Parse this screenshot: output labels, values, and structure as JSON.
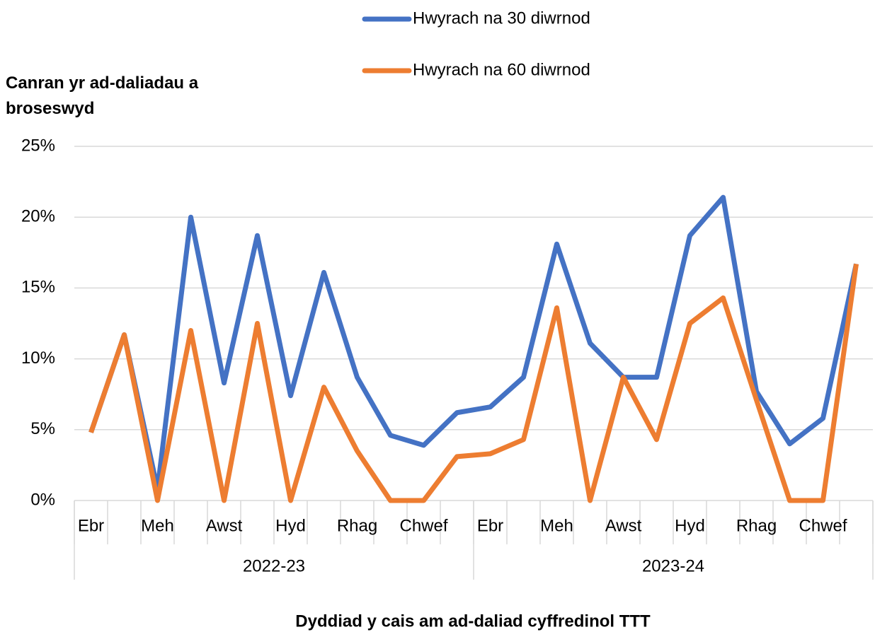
{
  "chart_data": {
    "type": "line",
    "y_axis_label": "Canran yr ad-daliadau a broseswyd",
    "x_axis_label": "Dyddiad y cais am ad-daliad cyffredinol TTT",
    "categories": [
      "Ebr",
      null,
      "Meh",
      null,
      "Awst",
      null,
      "Hyd",
      null,
      "Rhag",
      null,
      "Chwef",
      null,
      "Ebr",
      null,
      "Meh",
      null,
      "Awst",
      null,
      "Hyd",
      null,
      "Rhag",
      null,
      "Chwef",
      null
    ],
    "groups": [
      "2022-23",
      "2023-24"
    ],
    "series": [
      {
        "name": "Hwyrach na 30 diwrnod",
        "color": "#4472c4",
        "values": [
          4.8,
          11.7,
          0.8,
          20,
          8.3,
          18.7,
          7.4,
          16.1,
          8.7,
          4.6,
          3.9,
          6.2,
          6.6,
          8.7,
          18.1,
          11.1,
          8.7,
          8.7,
          18.7,
          21.4,
          7.7,
          4.0,
          5.8,
          16.7
        ]
      },
      {
        "name": "Hwyrach na 60 diwrnod",
        "color": "#ed7d31",
        "values": [
          4.8,
          11.7,
          0,
          12,
          0,
          12.5,
          0,
          8,
          3.5,
          0,
          0,
          3.1,
          3.3,
          4.3,
          13.6,
          0,
          8.7,
          4.3,
          12.5,
          14.3,
          7.1,
          0,
          0,
          16.7
        ]
      }
    ],
    "ylim": [
      0,
      25
    ],
    "yticks": [
      {
        "value": 0,
        "label": "0%"
      },
      {
        "value": 5,
        "label": "5%"
      },
      {
        "value": 10,
        "label": "10%"
      },
      {
        "value": 15,
        "label": "15%"
      },
      {
        "value": 20,
        "label": "20%"
      },
      {
        "value": 25,
        "label": "25%"
      }
    ],
    "grid": true
  }
}
